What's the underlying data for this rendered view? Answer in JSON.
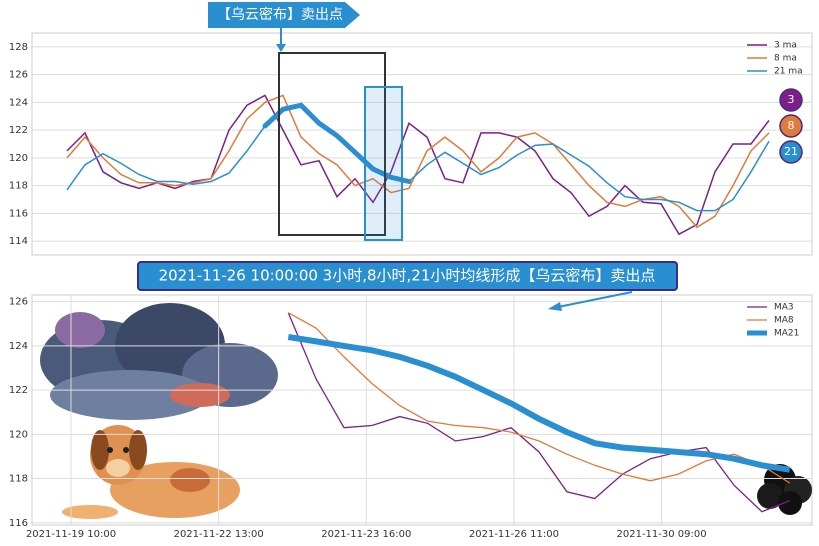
{
  "chart_data": [
    {
      "type": "line",
      "annotation": "【乌云密布】卖出点",
      "markers": [
        "3",
        "8",
        "21"
      ],
      "ylim": [
        113,
        129
      ],
      "yticks": [
        114,
        116,
        118,
        120,
        122,
        124,
        126,
        128
      ],
      "grid": true,
      "legend": "upper right",
      "series": [
        {
          "name": "3 ma",
          "color": "#7b1f8a",
          "values": [
            120.5,
            121.8,
            119,
            118.2,
            117.8,
            118.2,
            117.8,
            118.3,
            118.5,
            122,
            123.8,
            124.5,
            122,
            119.5,
            119.8,
            117.2,
            118.5,
            116.8,
            119,
            122.5,
            121.5,
            118.5,
            118.2,
            121.8,
            121.8,
            121.5,
            120.5,
            118.5,
            117.5,
            115.8,
            116.5,
            118,
            116.8,
            116.7,
            114.5,
            115.2,
            119,
            121,
            121,
            122.7
          ]
        },
        {
          "name": "8 ma",
          "color": "#e07b39",
          "values": [
            120,
            121.5,
            120,
            118.8,
            118.2,
            118.2,
            118,
            118.2,
            118.5,
            120.5,
            122.8,
            124,
            124.5,
            121.5,
            120.3,
            119.5,
            118,
            118.5,
            117.5,
            117.8,
            120.5,
            121.5,
            120.5,
            119,
            120,
            121.5,
            121.8,
            121,
            119.5,
            118,
            116.8,
            116.5,
            117,
            117.2,
            116.5,
            115,
            115.8,
            118,
            120.5,
            121.8
          ]
        },
        {
          "name": "21 ma",
          "color": "#2a8fd0",
          "values": [
            117.7,
            119.5,
            120.3,
            119.6,
            118.8,
            118.3,
            118.3,
            118.1,
            118.3,
            118.9,
            120.5,
            122.3,
            123.5,
            123.8,
            122.5,
            121.6,
            120.4,
            119.2,
            118.6,
            118.3,
            119.5,
            120.4,
            119.6,
            118.8,
            119.3,
            120.2,
            120.9,
            121.0,
            120.2,
            119.4,
            118.2,
            117.2,
            117.0,
            117.0,
            116.8,
            116.2,
            116.2,
            117.0,
            119.0,
            121.2
          ]
        }
      ]
    },
    {
      "type": "line",
      "annotation": "2021-11-26 10:00:00 3小时,8小时,21小时均线形成【乌云密布】卖出点",
      "xlim": [
        0,
        28
      ],
      "xticks": [
        {
          "value": 1.4,
          "label": "2021-11-19 10:00"
        },
        {
          "value": 6.7,
          "label": "2021-11-22 13:00"
        },
        {
          "value": 12,
          "label": "2021-11-23 16:00"
        },
        {
          "value": 17.3,
          "label": "2021-11-26 11:00"
        },
        {
          "value": 22.6,
          "label": "2021-11-30 09:00"
        }
      ],
      "ylim": [
        115.9,
        126.3
      ],
      "yticks": [
        116,
        118,
        120,
        122,
        124,
        126
      ],
      "grid": true,
      "legend": "upper right",
      "x": [
        9.2,
        10.2,
        11.2,
        12.2,
        13.2,
        14.2,
        15.2,
        16.2,
        17.2,
        18.2,
        19.2,
        20.2,
        21.2,
        22.2,
        23.2,
        24.2,
        25.2,
        26.2,
        27.2
      ],
      "series": [
        {
          "name": "MA3",
          "color": "#7b1f8a",
          "values": [
            125.5,
            122.5,
            120.3,
            120.4,
            120.8,
            120.5,
            119.7,
            119.9,
            120.3,
            119.2,
            117.4,
            117.1,
            118.2,
            118.9,
            119.2,
            119.4,
            117.7,
            116.5,
            117.0
          ]
        },
        {
          "name": "MA8",
          "color": "#e07b39",
          "values": [
            125.5,
            124.8,
            123.5,
            122.3,
            121.3,
            120.6,
            120.4,
            120.3,
            120.1,
            119.7,
            119.1,
            118.6,
            118.2,
            117.9,
            118.2,
            118.8,
            119.1,
            118.6,
            117.8
          ]
        },
        {
          "name": "MA21",
          "color": "#2a8fd0",
          "values": [
            124.4,
            124.2,
            124.0,
            123.8,
            123.5,
            123.1,
            122.6,
            122.0,
            121.4,
            120.7,
            120.1,
            119.6,
            119.4,
            119.3,
            119.2,
            119.1,
            118.9,
            118.6,
            118.4
          ]
        }
      ]
    }
  ]
}
